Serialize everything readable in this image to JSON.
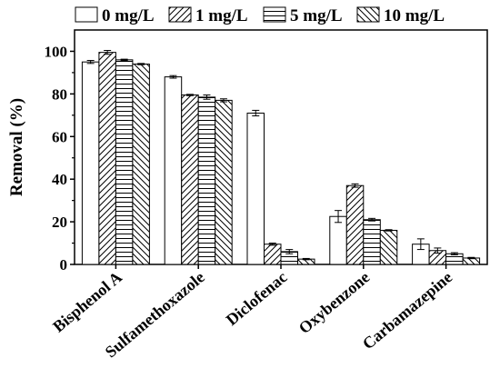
{
  "chart_data": {
    "type": "bar",
    "ylabel": "Removal (%)",
    "ylim": [
      0,
      110
    ],
    "yticks": [
      "0",
      "20",
      "40",
      "60",
      "80",
      "100"
    ],
    "categories": [
      "Bisphenol A",
      "Sulfamethoxazole",
      "Diclofenac",
      "Oxybenzone",
      "Carbamazepine"
    ],
    "legend_position": "top",
    "series": [
      {
        "name": "0 mg/L",
        "pattern": "blank",
        "values": [
          95,
          88,
          71,
          22.5,
          9.5
        ],
        "errors": [
          0.7,
          0.6,
          1.3,
          2.8,
          2.5
        ]
      },
      {
        "name": "1 mg/L",
        "pattern": "diagonal-forward",
        "values": [
          99.5,
          79.5,
          9.5,
          37,
          6.5
        ],
        "errors": [
          0.9,
          0.3,
          0.5,
          0.8,
          1.2
        ]
      },
      {
        "name": "5 mg/L",
        "pattern": "horizontal",
        "values": [
          96,
          78.5,
          6,
          21,
          5
        ],
        "errors": [
          0.3,
          1.0,
          1.0,
          0.6,
          0.5
        ]
      },
      {
        "name": "10 mg/L",
        "pattern": "diagonal-back",
        "values": [
          94,
          77,
          2.5,
          16,
          3
        ],
        "errors": [
          0.3,
          0.7,
          0.3,
          0.3,
          0.3
        ]
      }
    ],
    "colors": {
      "stroke": "#000000",
      "fill": "#ffffff"
    }
  }
}
